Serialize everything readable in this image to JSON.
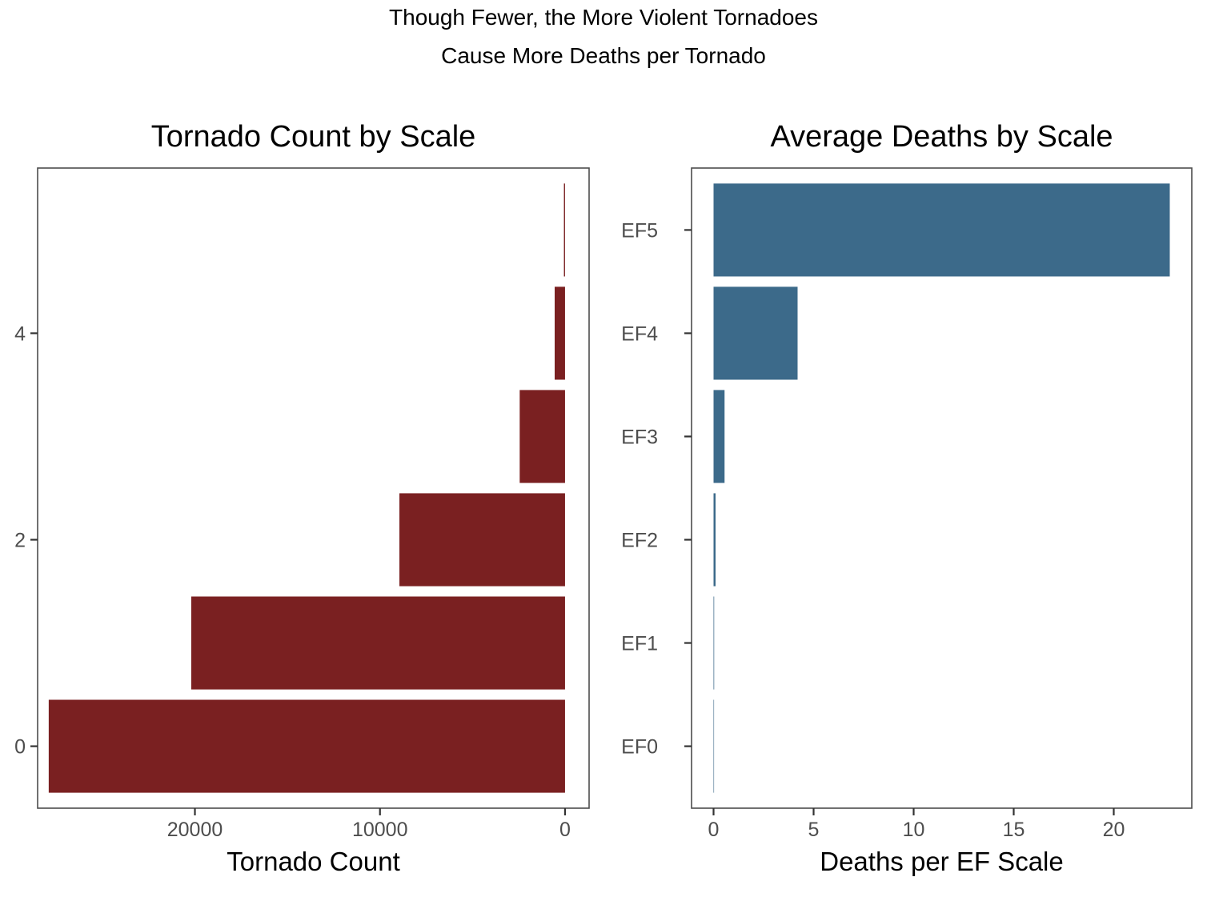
{
  "figure": {
    "suptitle_line1": "Though Fewer, the More Violent Tornadoes",
    "suptitle_line2": "Cause More Deaths per Tornado"
  },
  "chart_data": [
    {
      "type": "bar",
      "orientation": "horizontal",
      "title": "Tornado Count by Scale",
      "xlabel": "Tornado Count",
      "ylabel": "",
      "x_reversed": true,
      "xlim": [
        28500,
        -1300
      ],
      "ylim": [
        -0.6,
        5.6
      ],
      "x_ticks": [
        20000,
        10000,
        0
      ],
      "x_tick_labels": [
        "20000",
        "10000",
        "0"
      ],
      "y_ticks": [
        0,
        2,
        4
      ],
      "y_tick_labels": [
        "0",
        "2",
        "4"
      ],
      "categories": [
        0,
        1,
        2,
        3,
        4,
        5
      ],
      "values": [
        27900,
        20200,
        8950,
        2450,
        560,
        60
      ],
      "color": "#7a2021",
      "grid": false
    },
    {
      "type": "bar",
      "orientation": "horizontal",
      "title": "Average Deaths by Scale",
      "xlabel": "Deaths per EF Scale",
      "ylabel": "",
      "xlim": [
        -1.1,
        23.9
      ],
      "ylim": [
        -0.6,
        5.6
      ],
      "x_ticks": [
        0,
        5,
        10,
        15,
        20
      ],
      "x_tick_labels": [
        "0",
        "5",
        "10",
        "15",
        "20"
      ],
      "categories": [
        "EF0",
        "EF1",
        "EF2",
        "EF3",
        "EF4",
        "EF5"
      ],
      "values": [
        0.002,
        0.03,
        0.1,
        0.55,
        4.2,
        22.8
      ],
      "color": "#3c6a8a",
      "grid": false
    }
  ]
}
